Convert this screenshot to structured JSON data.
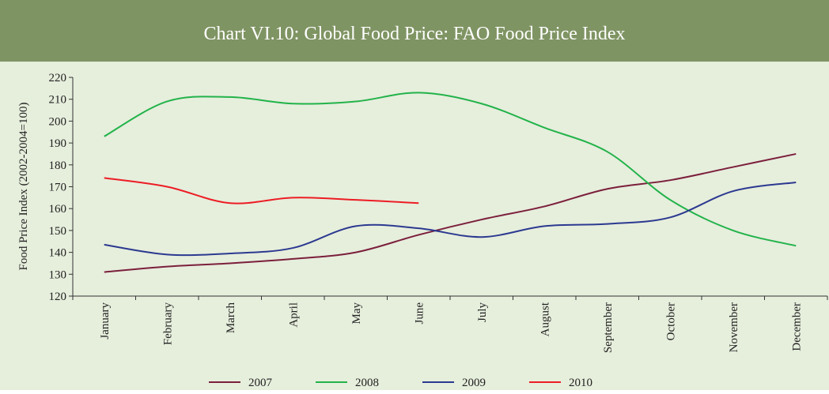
{
  "chart_data": {
    "type": "line",
    "title": "Chart VI.10: Global Food Price: FAO Food Price Index",
    "y_label": "Food Price Index (2002-2004=100)",
    "categories": [
      "January",
      "February",
      "March",
      "April",
      "May",
      "June",
      "July",
      "August",
      "September",
      "October",
      "November",
      "December"
    ],
    "series": [
      {
        "name": "2007",
        "color": "#7b1f3c",
        "values": [
          131,
          133.5,
          135,
          137,
          140,
          148,
          155,
          161,
          169,
          173,
          179,
          185
        ]
      },
      {
        "name": "2008",
        "color": "#22b34a",
        "values": [
          193,
          209,
          211,
          208,
          209,
          213,
          208,
          197,
          186,
          164,
          150,
          143
        ]
      },
      {
        "name": "2009",
        "color": "#2b3990",
        "values": [
          143.5,
          139,
          139.5,
          142,
          152,
          151,
          147,
          152,
          153,
          156,
          168,
          172
        ]
      },
      {
        "name": "2010",
        "color": "#ed1c24",
        "values": [
          174,
          170,
          162.5,
          165,
          164,
          162.5,
          null,
          null,
          null,
          null,
          null,
          null
        ]
      }
    ],
    "ylim": [
      120,
      220
    ],
    "yticks": [
      120,
      130,
      140,
      150,
      160,
      170,
      180,
      190,
      200,
      210,
      220
    ],
    "legend": "bottom"
  }
}
